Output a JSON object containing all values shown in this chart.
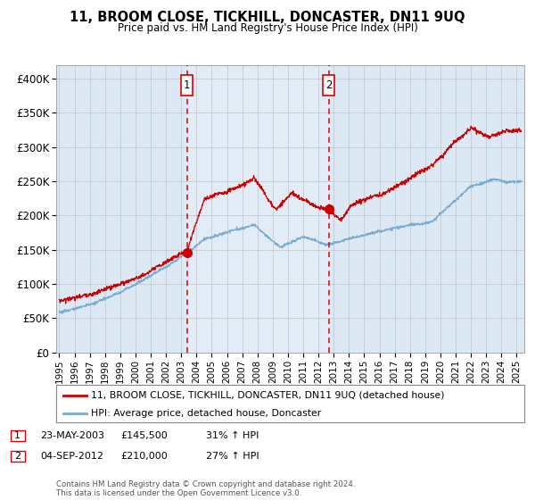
{
  "title": "11, BROOM CLOSE, TICKHILL, DONCASTER, DN11 9UQ",
  "subtitle": "Price paid vs. HM Land Registry's House Price Index (HPI)",
  "legend_label_red": "11, BROOM CLOSE, TICKHILL, DONCASTER, DN11 9UQ (detached house)",
  "legend_label_blue": "HPI: Average price, detached house, Doncaster",
  "annotation1_label": "1",
  "annotation1_date": "23-MAY-2003",
  "annotation1_price": "£145,500",
  "annotation1_hpi": "31% ↑ HPI",
  "annotation2_label": "2",
  "annotation2_date": "04-SEP-2012",
  "annotation2_price": "£210,000",
  "annotation2_hpi": "27% ↑ HPI",
  "sale1_year": 2003.38,
  "sale1_value": 145500,
  "sale2_year": 2012.67,
  "sale2_value": 210000,
  "ylim": [
    0,
    420000
  ],
  "xlim_start": 1994.8,
  "xlim_end": 2025.5,
  "background_color": "#ffffff",
  "plot_bg_color": "#dce9f5",
  "grid_color": "#bbbbbb",
  "red_color": "#cc0000",
  "blue_color": "#7aabcf",
  "dashed_red": "#dd0000",
  "footer_text": "Contains HM Land Registry data © Crown copyright and database right 2024.\nThis data is licensed under the Open Government Licence v3.0.",
  "yticks": [
    0,
    50000,
    100000,
    150000,
    200000,
    250000,
    300000,
    350000,
    400000
  ],
  "ytick_labels": [
    "£0",
    "£50K",
    "£100K",
    "£150K",
    "£200K",
    "£250K",
    "£300K",
    "£350K",
    "£400K"
  ]
}
